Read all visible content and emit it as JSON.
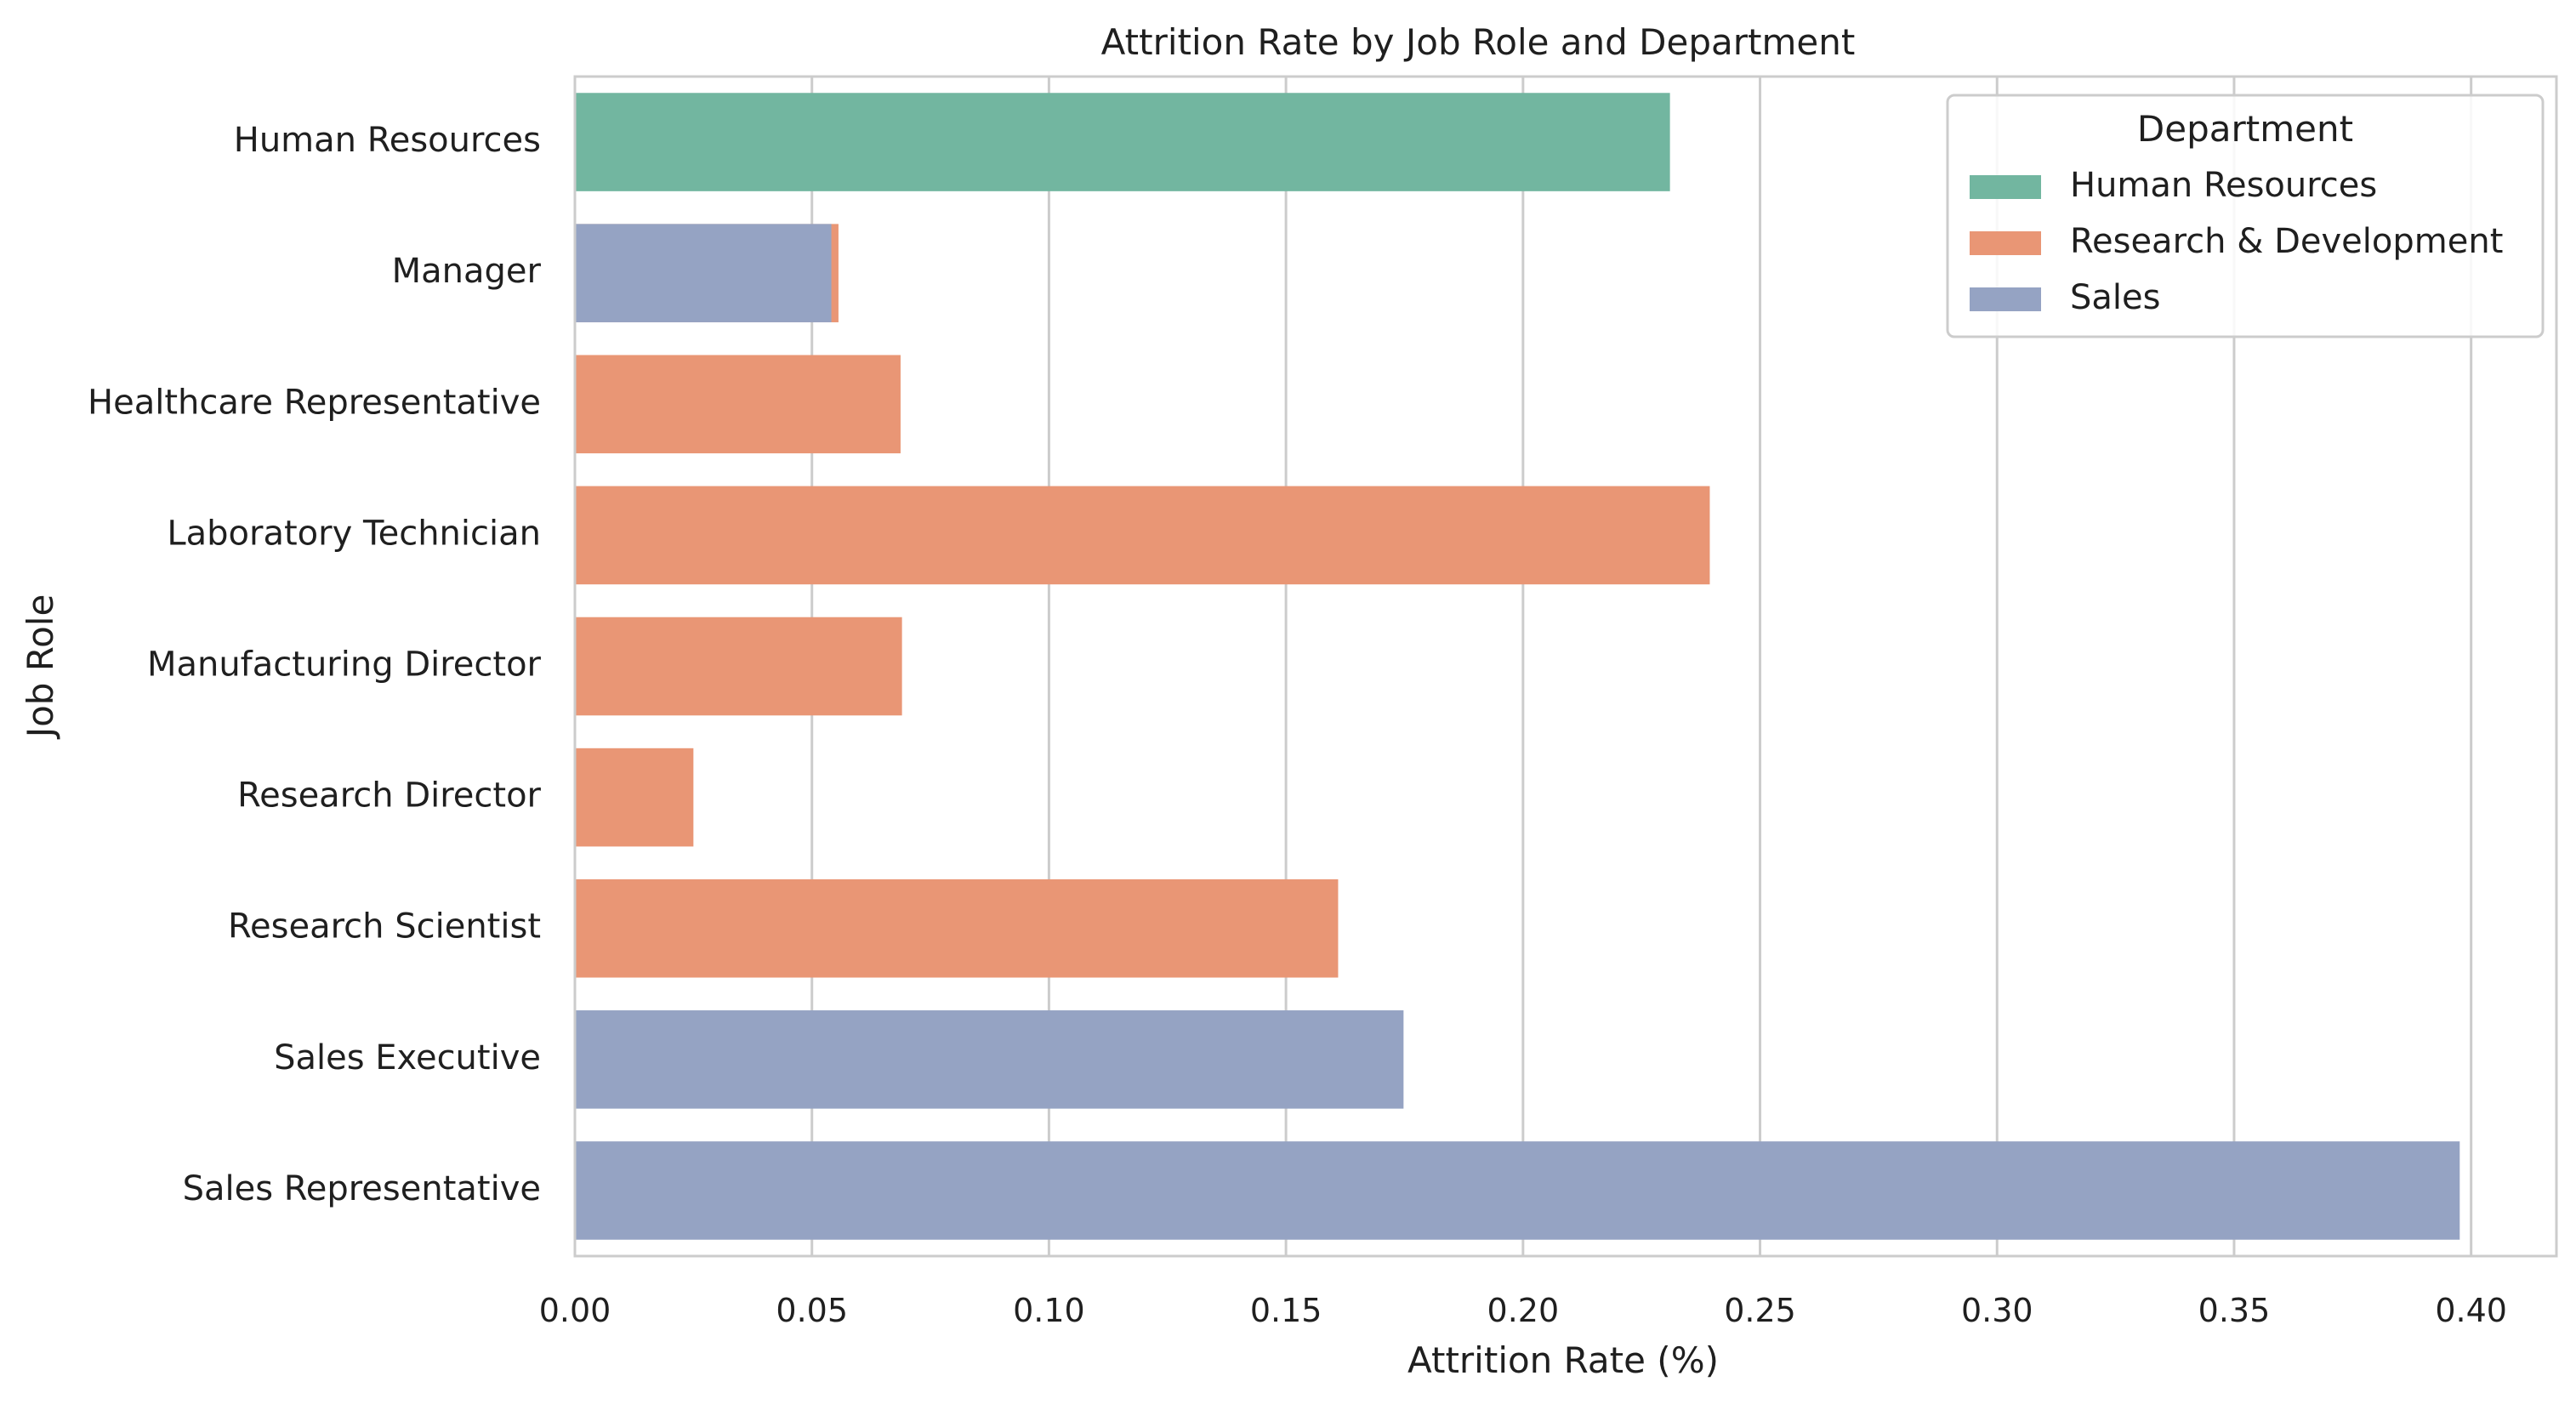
{
  "chart_data": {
    "type": "bar",
    "orientation": "horizontal",
    "title": "Attrition Rate by Job Role and Department",
    "xlabel": "Attrition Rate (%)",
    "ylabel": "Job Role",
    "xlim": [
      0,
      0.418
    ],
    "xticks": [
      "0.00",
      "0.05",
      "0.10",
      "0.15",
      "0.20",
      "0.25",
      "0.30",
      "0.35",
      "0.40"
    ],
    "xtick_values": [
      0,
      0.05,
      0.1,
      0.15,
      0.2,
      0.25,
      0.3,
      0.35,
      0.4
    ],
    "grid": true,
    "legend_position": "top-right",
    "categories": [
      "Human Resources",
      "Manager",
      "Healthcare Representative",
      "Laboratory Technician",
      "Manufacturing Director",
      "Research Director",
      "Research Scientist",
      "Sales Executive",
      "Sales Representative"
    ],
    "legend_title": "Department",
    "series": [
      {
        "name": "Human Resources",
        "color": "#72b6a0",
        "values": [
          0.231,
          null,
          null,
          null,
          null,
          null,
          null,
          null,
          null
        ]
      },
      {
        "name": "Research & Development",
        "color": "#e99675",
        "values": [
          null,
          0.0556,
          0.0687,
          0.2394,
          0.069,
          0.025,
          0.161,
          null,
          null
        ]
      },
      {
        "name": "Sales",
        "color": "#95a3c3",
        "values": [
          null,
          0.0541,
          null,
          null,
          null,
          null,
          null,
          0.1748,
          0.3976
        ]
      }
    ]
  }
}
